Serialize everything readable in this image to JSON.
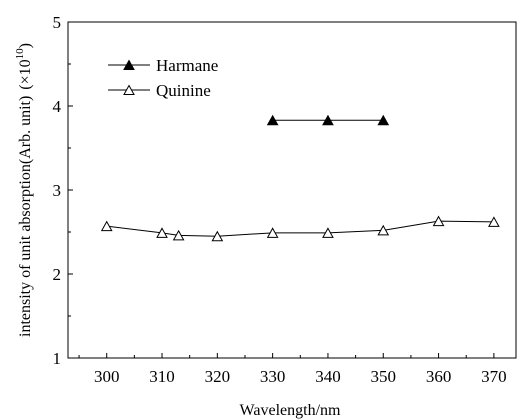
{
  "chart_data": {
    "type": "line",
    "xlabel": "Wavelength/nm",
    "ylabel": "intensity of unit absorption(Arb. unit)",
    "yunit_prefix": "(×10",
    "yunit_exp": "10",
    "yunit_suffix": ")",
    "xlim": [
      293,
      374
    ],
    "ylim": [
      1,
      5
    ],
    "xticks": [
      300,
      310,
      320,
      330,
      340,
      350,
      360,
      370
    ],
    "yticks": [
      1,
      2,
      3,
      4,
      5
    ],
    "grid": false,
    "legend_position": "top-left",
    "series": [
      {
        "name": "Harmane",
        "marker": "filled-triangle",
        "x": [
          330,
          340,
          350
        ],
        "y": [
          3.83,
          3.83,
          3.83
        ]
      },
      {
        "name": "Quinine",
        "marker": "open-triangle",
        "x": [
          300,
          310,
          313,
          320,
          330,
          340,
          350,
          360,
          370
        ],
        "y": [
          2.57,
          2.49,
          2.46,
          2.45,
          2.49,
          2.49,
          2.52,
          2.63,
          2.62
        ]
      }
    ]
  }
}
